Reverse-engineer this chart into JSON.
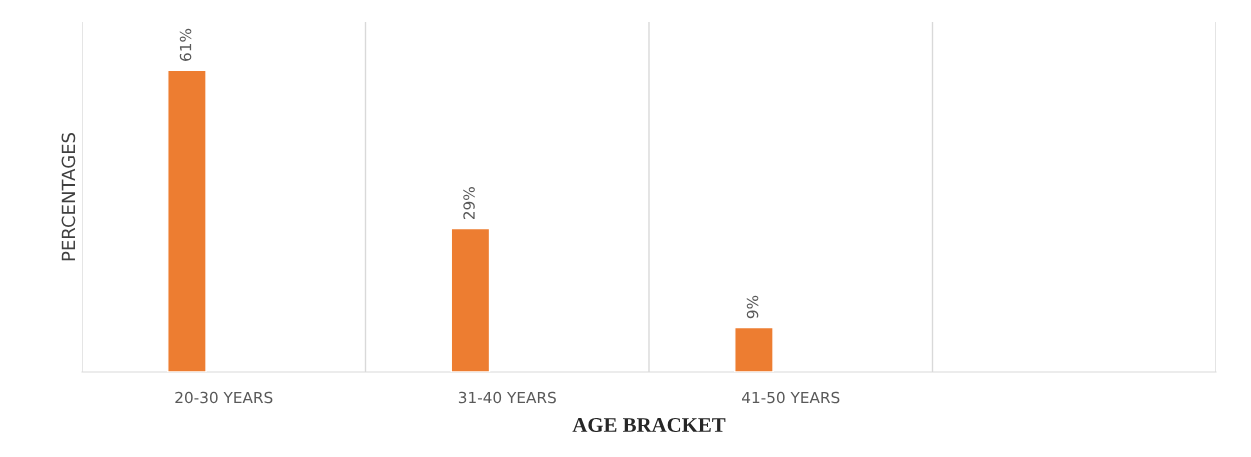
{
  "chart_data": {
    "type": "bar",
    "xlabel": "AGE BRACKET",
    "ylabel": "PERCENTAGES",
    "categories": [
      "20-30 YEARS",
      "31-40 YEARS",
      "41-50 YEARS",
      null
    ],
    "values": [
      61,
      29,
      9,
      null
    ],
    "value_labels": [
      "61%",
      "29%",
      "9%",
      null
    ],
    "color": "#ed7d31",
    "grid": false,
    "legend": false
  }
}
